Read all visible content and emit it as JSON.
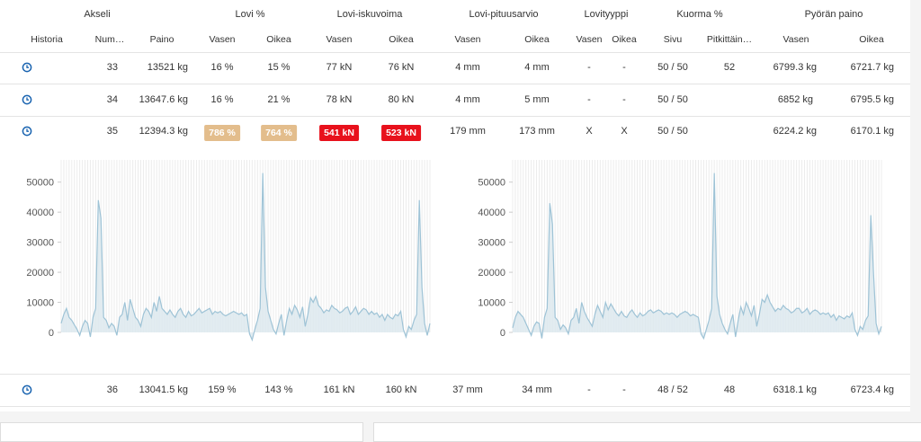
{
  "groups": {
    "akseli": "Akseli",
    "lovi_pct": "Lovi %",
    "lovi_isku": "Lovi-iskuvoima",
    "lovi_pituus": "Lovi-pituusarvio",
    "lovityyppi": "Lovityyppi",
    "kuorma": "Kuorma %",
    "pyoran_paino": "Pyörän paino"
  },
  "cols": {
    "historia": "Historia",
    "numero": "Num…",
    "paino": "Paino",
    "vasen": "Vasen",
    "oikea": "Oikea",
    "sivu": "Sivu",
    "pitkittain": "Pitkittäin…"
  },
  "rows": {
    "r33": {
      "num": "33",
      "paino": "13521 kg",
      "lovi_v": "16 %",
      "lovi_o": "15 %",
      "isku_v": "77 kN",
      "isku_o": "76 kN",
      "pit_v": "4 mm",
      "pit_o": "4 mm",
      "tyyppi_v": "-",
      "tyyppi_o": "-",
      "sivu": "50 / 50",
      "pitk": "52",
      "pp_v": "6799.3 kg",
      "pp_o": "6721.7 kg"
    },
    "r34": {
      "num": "34",
      "paino": "13647.6 kg",
      "lovi_v": "16 %",
      "lovi_o": "21 %",
      "isku_v": "78 kN",
      "isku_o": "80 kN",
      "pit_v": "4 mm",
      "pit_o": "5 mm",
      "tyyppi_v": "-",
      "tyyppi_o": "-",
      "sivu": "50 / 50",
      "pitk": "",
      "pp_v": "6852 kg",
      "pp_o": "6795.5 kg"
    },
    "r35": {
      "num": "35",
      "paino": "12394.3 kg",
      "lovi_v": "786 %",
      "lovi_o": "764 %",
      "isku_v": "541 kN",
      "isku_o": "523 kN",
      "pit_v": "179 mm",
      "pit_o": "173 mm",
      "tyyppi_v": "X",
      "tyyppi_o": "X",
      "sivu": "50 / 50",
      "pitk": "",
      "pp_v": "6224.2 kg",
      "pp_o": "6170.1 kg"
    },
    "r36": {
      "num": "36",
      "paino": "13041.5 kg",
      "lovi_v": "159 %",
      "lovi_o": "143 %",
      "isku_v": "161 kN",
      "isku_o": "160 kN",
      "pit_v": "37 mm",
      "pit_o": "34 mm",
      "tyyppi_v": "-",
      "tyyppi_o": "-",
      "sivu": "48 / 52",
      "pitk": "48",
      "pp_v": "6318.1 kg",
      "pp_o": "6723.4 kg"
    }
  },
  "colors": {
    "warn": "#e3bd8c",
    "alert": "#e8111c",
    "line": "#9ec3d6",
    "fill": "#dde9ef",
    "icon": "#1a64b0"
  },
  "chart_data": [
    {
      "type": "area",
      "ylim": [
        0,
        55000
      ],
      "yticks": [
        "0",
        "10000",
        "20000",
        "30000",
        "40000",
        "50000"
      ],
      "values": [
        3000,
        6000,
        8000,
        5000,
        4000,
        2500,
        1000,
        -1000,
        2000,
        4000,
        3000,
        -1500,
        5000,
        8000,
        44000,
        38000,
        5000,
        4000,
        1500,
        3000,
        2000,
        -1000,
        5000,
        6000,
        10000,
        4000,
        11000,
        8000,
        5000,
        4000,
        2000,
        6000,
        8000,
        7000,
        5000,
        10000,
        7000,
        12000,
        8000,
        7000,
        6000,
        7500,
        6000,
        5000,
        7000,
        8000,
        6000,
        5000,
        7000,
        5500,
        6000,
        7000,
        8000,
        6500,
        7000,
        7500,
        8000,
        6000,
        7000,
        6500,
        7000,
        6000,
        5500,
        6000,
        6500,
        7000,
        6500,
        6000,
        6500,
        5500,
        6000,
        -500,
        -2500,
        1000,
        4000,
        8000,
        53000,
        15000,
        7000,
        4000,
        1000,
        -500,
        3000,
        6000,
        -1000,
        4000,
        8000,
        6000,
        9000,
        7500,
        5000,
        8500,
        2000,
        6000,
        11500,
        10000,
        12000,
        9000,
        8000,
        6500,
        7500,
        7000,
        9000,
        8000,
        7500,
        6500,
        7000,
        8000,
        8500,
        6000,
        7000,
        8500,
        6000,
        7000,
        8000,
        7500,
        6000,
        7000,
        6000,
        6500,
        5000,
        6000,
        4000,
        6000,
        5000,
        4500,
        6000,
        5500,
        7000,
        1000,
        -1500,
        2000,
        1000,
        4000,
        6000,
        44000,
        15000,
        3000,
        -1000,
        3000
      ]
    },
    {
      "type": "area",
      "ylim": [
        0,
        55000
      ],
      "yticks": [
        "0",
        "10000",
        "20000",
        "30000",
        "40000",
        "50000"
      ],
      "values": [
        1500,
        5000,
        7000,
        6000,
        5000,
        3000,
        1000,
        -1000,
        2000,
        3500,
        3000,
        -2000,
        5000,
        8000,
        43000,
        36000,
        5000,
        4000,
        1000,
        2500,
        1500,
        -500,
        4000,
        5000,
        8000,
        3000,
        10000,
        7000,
        5000,
        3500,
        2000,
        6000,
        9000,
        7000,
        5000,
        10000,
        7500,
        9500,
        8000,
        6500,
        5500,
        7000,
        5500,
        5000,
        6500,
        7500,
        6000,
        5000,
        6500,
        5500,
        6000,
        7000,
        7500,
        6500,
        7000,
        7500,
        7000,
        6000,
        6500,
        6000,
        6500,
        6000,
        5000,
        6000,
        6500,
        7000,
        6500,
        5500,
        6000,
        5500,
        5000,
        -500,
        -2000,
        1000,
        4000,
        8000,
        53000,
        12000,
        6000,
        3000,
        1000,
        -500,
        3000,
        6000,
        -1500,
        4000,
        8500,
        6000,
        10000,
        8000,
        5500,
        9000,
        2000,
        6000,
        11000,
        10000,
        12500,
        10000,
        8500,
        7000,
        8000,
        7500,
        9000,
        8000,
        7500,
        6500,
        7000,
        8000,
        8000,
        6500,
        7000,
        8000,
        6000,
        7000,
        7500,
        7000,
        6000,
        6500,
        6000,
        6500,
        5000,
        6000,
        4000,
        5500,
        5000,
        4500,
        5500,
        5000,
        6500,
        1000,
        -1000,
        2000,
        1000,
        4000,
        5500,
        39000,
        20000,
        3000,
        -500,
        2000
      ]
    }
  ]
}
